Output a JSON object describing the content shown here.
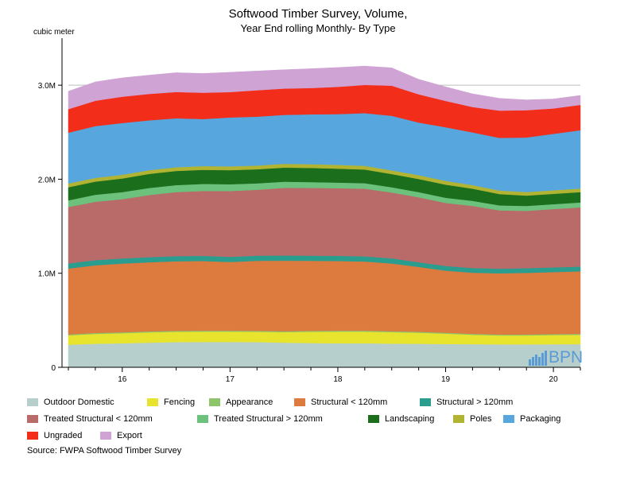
{
  "chart_data": {
    "type": "area",
    "stacked": true,
    "title": "Softwood Timber Survey, Volume,",
    "subtitle": "Year End rolling Monthly- By Type",
    "ylabel": "cubic meter",
    "xlabel": "",
    "ylim": [
      0,
      3500000
    ],
    "yticks": [
      {
        "value": 0,
        "label": "0"
      },
      {
        "value": 1000000,
        "label": "1.0M"
      },
      {
        "value": 2000000,
        "label": "2.0M"
      },
      {
        "value": 3000000,
        "label": "3.0M"
      }
    ],
    "xlim": [
      2015.5,
      2020.25
    ],
    "xticks": [
      {
        "value": 2016,
        "label": "16"
      },
      {
        "value": 2017,
        "label": "17"
      },
      {
        "value": 2018,
        "label": "18"
      },
      {
        "value": 2019,
        "label": "19"
      },
      {
        "value": 2020,
        "label": "20"
      }
    ],
    "x": [
      2015.5,
      2015.75,
      2016.0,
      2016.25,
      2016.5,
      2016.75,
      2017.0,
      2017.25,
      2017.5,
      2017.75,
      2018.0,
      2018.25,
      2018.5,
      2018.75,
      2019.0,
      2019.25,
      2019.5,
      2019.75,
      2020.0,
      2020.25
    ],
    "grid": "horizontal",
    "legend_position": "bottom",
    "series": [
      {
        "name": "Outdoor Domestic",
        "color": "#b7cfcc",
        "values": [
          240000,
          250000,
          255000,
          262000,
          268000,
          270000,
          270000,
          268000,
          262000,
          258000,
          255000,
          255000,
          252000,
          250000,
          248000,
          246000,
          244000,
          244000,
          245000,
          246000
        ]
      },
      {
        "name": "Fencing",
        "color": "#e8e32c",
        "values": [
          100000,
          105000,
          108000,
          110000,
          110000,
          110000,
          110000,
          110000,
          112000,
          120000,
          125000,
          125000,
          122000,
          118000,
          110000,
          100000,
          95000,
          95000,
          98000,
          100000
        ]
      },
      {
        "name": "Appearance",
        "color": "#8dc56b",
        "values": [
          10000,
          10000,
          10000,
          10000,
          10000,
          10000,
          10000,
          10000,
          10000,
          10000,
          10000,
          10000,
          10000,
          10000,
          10000,
          10000,
          10000,
          10000,
          10000,
          10000
        ]
      },
      {
        "name": "Structural < 120mm",
        "color": "#dd7a3e",
        "values": [
          700000,
          720000,
          730000,
          735000,
          740000,
          740000,
          730000,
          745000,
          750000,
          745000,
          740000,
          735000,
          720000,
          690000,
          660000,
          650000,
          650000,
          655000,
          660000,
          665000
        ]
      },
      {
        "name": "Structural > 120mm",
        "color": "#2a9d8f",
        "values": [
          55000,
          55000,
          55000,
          55000,
          55000,
          55000,
          55000,
          55000,
          55000,
          55000,
          55000,
          55000,
          55000,
          50000,
          50000,
          50000,
          50000,
          50000,
          50000,
          50000
        ]
      },
      {
        "name": "Treated Structural < 120mm",
        "color": "#b86b69",
        "values": [
          600000,
          620000,
          630000,
          660000,
          680000,
          690000,
          700000,
          700000,
          720000,
          720000,
          720000,
          720000,
          700000,
          690000,
          670000,
          660000,
          620000,
          610000,
          620000,
          630000
        ]
      },
      {
        "name": "Treated Structural > 120mm",
        "color": "#6cc17c",
        "values": [
          70000,
          75000,
          75000,
          75000,
          75000,
          75000,
          72000,
          68000,
          65000,
          62000,
          60000,
          58000,
          56000,
          55000,
          55000,
          54000,
          53000,
          52000,
          52000,
          52000
        ]
      },
      {
        "name": "Landscaping",
        "color": "#1b6e1b",
        "values": [
          140000,
          140000,
          145000,
          150000,
          150000,
          150000,
          150000,
          150000,
          150000,
          150000,
          148000,
          145000,
          140000,
          140000,
          140000,
          130000,
          120000,
          110000,
          110000,
          110000
        ]
      },
      {
        "name": "Poles",
        "color": "#b0b432",
        "values": [
          40000,
          40000,
          40000,
          40000,
          40000,
          40000,
          40000,
          40000,
          40000,
          40000,
          40000,
          40000,
          40000,
          40000,
          40000,
          38000,
          38000,
          38000,
          38000,
          38000
        ]
      },
      {
        "name": "Packaging",
        "color": "#57a6de",
        "values": [
          540000,
          550000,
          550000,
          530000,
          520000,
          500000,
          520000,
          520000,
          520000,
          530000,
          540000,
          560000,
          580000,
          560000,
          570000,
          560000,
          560000,
          580000,
          600000,
          620000
        ]
      },
      {
        "name": "Ungraded",
        "color": "#f22d1a",
        "values": [
          250000,
          270000,
          280000,
          280000,
          280000,
          280000,
          270000,
          280000,
          280000,
          280000,
          290000,
          300000,
          320000,
          300000,
          280000,
          270000,
          290000,
          290000,
          270000,
          270000
        ]
      },
      {
        "name": "Export",
        "color": "#cfa3d3",
        "values": [
          190000,
          200000,
          200000,
          200000,
          205000,
          205000,
          210000,
          205000,
          200000,
          205000,
          205000,
          200000,
          190000,
          160000,
          150000,
          140000,
          130000,
          110000,
          100000,
          100000
        ]
      }
    ]
  },
  "source": "Source: FWPA Softwood Timber Survey",
  "watermark": {
    "text": "BPN",
    "color": "#5b9bd5"
  }
}
